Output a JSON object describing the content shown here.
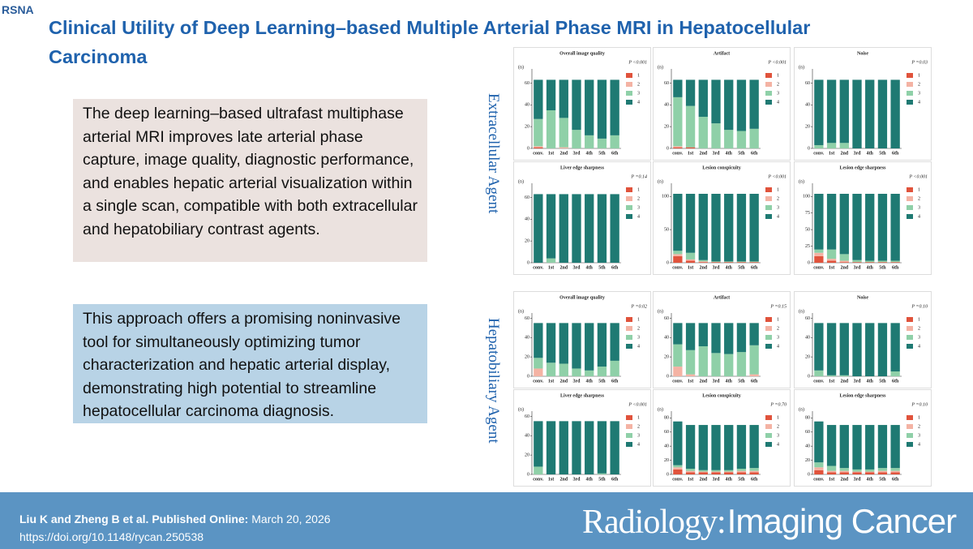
{
  "header": {
    "logo": "RSNA",
    "title": "Clinical Utility of Deep Learning–based Multiple Arterial Phase MRI in Hepatocellular Carcinoma"
  },
  "summary": [
    "The deep learning–based ultrafast multiphase arterial MRI improves late arterial phase capture, image quality, diagnostic performance, and enables hepatic arterial visualization within a single scan, compatible with  both extracellular and hepatobiliary contrast agents.",
    "This approach offers a promising noninvasive tool for simultaneously optimizing tumor characterization and hepatic arterial display, demonstrating high potential to streamline hepatocellular carcinoma diagnosis."
  ],
  "groups": [
    "Extracellular Agent",
    "Hepatobiliary Agent"
  ],
  "chart_data": [
    {
      "type": "bar",
      "stacked": true,
      "title": "Overall image quality",
      "p_value": "P <0.001",
      "y_label": "(n)",
      "categories": [
        "conv.",
        "1st",
        "2nd",
        "3rd",
        "4th",
        "5th",
        "6th"
      ],
      "ylim": [
        0,
        70
      ],
      "yticks": [
        0,
        20,
        40,
        60
      ],
      "series": [
        {
          "name": "1",
          "color": "#e0533c",
          "values": [
            1,
            0,
            0,
            0,
            0,
            0,
            0
          ]
        },
        {
          "name": "2",
          "color": "#f4b3a4",
          "values": [
            1,
            0,
            1,
            0,
            0,
            0,
            0
          ]
        },
        {
          "name": "3",
          "color": "#8fd0a8",
          "values": [
            25,
            35,
            27,
            17,
            12,
            9,
            12
          ]
        },
        {
          "name": "4",
          "color": "#1f7a73",
          "values": [
            36,
            28,
            35,
            46,
            51,
            54,
            51
          ]
        }
      ]
    },
    {
      "type": "bar",
      "stacked": true,
      "title": "Artifact",
      "p_value": "P <0.001",
      "y_label": "(n)",
      "categories": [
        "conv.",
        "1st",
        "2nd",
        "3rd",
        "4th",
        "5th",
        "6th"
      ],
      "ylim": [
        0,
        70
      ],
      "yticks": [
        0,
        20,
        40,
        60
      ],
      "series": [
        {
          "name": "1",
          "color": "#e0533c",
          "values": [
            1,
            1,
            0,
            0,
            0,
            0,
            0
          ]
        },
        {
          "name": "2",
          "color": "#f4b3a4",
          "values": [
            1,
            0,
            0,
            0,
            0,
            0,
            0
          ]
        },
        {
          "name": "3",
          "color": "#8fd0a8",
          "values": [
            45,
            38,
            29,
            23,
            17,
            16,
            18
          ]
        },
        {
          "name": "4",
          "color": "#1f7a73",
          "values": [
            16,
            24,
            34,
            40,
            46,
            47,
            45
          ]
        }
      ]
    },
    {
      "type": "bar",
      "stacked": true,
      "title": "Noise",
      "p_value": "P =0.03",
      "y_label": "(n)",
      "categories": [
        "conv.",
        "1st",
        "2nd",
        "3rd",
        "4th",
        "5th",
        "6th"
      ],
      "ylim": [
        0,
        70
      ],
      "yticks": [
        0,
        20,
        40,
        60
      ],
      "series": [
        {
          "name": "1",
          "color": "#e0533c",
          "values": [
            0,
            0,
            0,
            0,
            0,
            0,
            0
          ]
        },
        {
          "name": "2",
          "color": "#f4b3a4",
          "values": [
            0,
            0,
            0,
            0,
            0,
            0,
            0
          ]
        },
        {
          "name": "3",
          "color": "#8fd0a8",
          "values": [
            3,
            5,
            5,
            0,
            0,
            0,
            0
          ]
        },
        {
          "name": "4",
          "color": "#1f7a73",
          "values": [
            60,
            58,
            58,
            63,
            63,
            63,
            63
          ]
        }
      ]
    },
    {
      "type": "bar",
      "stacked": true,
      "title": "Liver edge sharpness",
      "p_value": "P =0.14",
      "y_label": "(n)",
      "categories": [
        "conv.",
        "1st",
        "2nd",
        "3rd",
        "4th",
        "5th",
        "6th"
      ],
      "ylim": [
        0,
        70
      ],
      "yticks": [
        0,
        20,
        40,
        60
      ],
      "series": [
        {
          "name": "1",
          "color": "#e0533c",
          "values": [
            0,
            0,
            0,
            0,
            0,
            0,
            0
          ]
        },
        {
          "name": "2",
          "color": "#f4b3a4",
          "values": [
            0,
            0,
            0,
            0,
            0,
            0,
            0
          ]
        },
        {
          "name": "3",
          "color": "#8fd0a8",
          "values": [
            0,
            4,
            0,
            0,
            0,
            0,
            0
          ]
        },
        {
          "name": "4",
          "color": "#1f7a73",
          "values": [
            63,
            59,
            63,
            63,
            63,
            63,
            63
          ]
        }
      ]
    },
    {
      "type": "bar",
      "stacked": true,
      "title": "Lesion conspicuity",
      "p_value": "P <0.001",
      "y_label": "(n)",
      "categories": [
        "conv.",
        "1st",
        "2nd",
        "3rd",
        "4th",
        "5th",
        "6th"
      ],
      "ylim": [
        0,
        115
      ],
      "yticks": [
        0,
        50,
        100
      ],
      "series": [
        {
          "name": "1",
          "color": "#e0533c",
          "values": [
            10,
            3,
            1,
            1,
            1,
            1,
            1
          ]
        },
        {
          "name": "2",
          "color": "#f4b3a4",
          "values": [
            3,
            2,
            1,
            0,
            0,
            0,
            0
          ]
        },
        {
          "name": "3",
          "color": "#8fd0a8",
          "values": [
            5,
            10,
            2,
            1,
            1,
            1,
            1
          ]
        },
        {
          "name": "4",
          "color": "#1f7a73",
          "values": [
            86,
            89,
            100,
            102,
            102,
            102,
            102
          ]
        }
      ]
    },
    {
      "type": "bar",
      "stacked": true,
      "title": "Lesion edge sharpness",
      "p_value": "P <0.001",
      "y_label": "(n)",
      "categories": [
        "conv.",
        "1st",
        "2nd",
        "3rd",
        "4th",
        "5th",
        "6th"
      ],
      "ylim": [
        0,
        115
      ],
      "yticks": [
        0,
        25,
        50,
        75,
        100
      ],
      "series": [
        {
          "name": "1",
          "color": "#e0533c",
          "values": [
            10,
            3,
            1,
            1,
            1,
            1,
            1
          ]
        },
        {
          "name": "2",
          "color": "#f4b3a4",
          "values": [
            5,
            3,
            2,
            0,
            0,
            0,
            0
          ]
        },
        {
          "name": "3",
          "color": "#8fd0a8",
          "values": [
            5,
            14,
            10,
            3,
            2,
            2,
            2
          ]
        },
        {
          "name": "4",
          "color": "#1f7a73",
          "values": [
            84,
            84,
            91,
            100,
            101,
            101,
            101
          ]
        }
      ]
    },
    {
      "type": "bar",
      "stacked": true,
      "title": "Overall image quality",
      "p_value": "P =0.02",
      "y_label": "(n)",
      "categories": [
        "conv.",
        "1st",
        "2nd",
        "3rd",
        "4th",
        "5th",
        "6th"
      ],
      "ylim": [
        0,
        62
      ],
      "yticks": [
        0,
        20,
        40,
        60
      ],
      "series": [
        {
          "name": "1",
          "color": "#e0533c",
          "values": [
            0,
            0,
            0,
            0,
            0,
            0,
            0
          ]
        },
        {
          "name": "2",
          "color": "#f4b3a4",
          "values": [
            8,
            0,
            0,
            0,
            0,
            0,
            0
          ]
        },
        {
          "name": "3",
          "color": "#8fd0a8",
          "values": [
            11,
            14,
            13,
            8,
            6,
            10,
            16
          ]
        },
        {
          "name": "4",
          "color": "#1f7a73",
          "values": [
            36,
            41,
            42,
            47,
            49,
            45,
            39
          ]
        }
      ]
    },
    {
      "type": "bar",
      "stacked": true,
      "title": "Artifact",
      "p_value": "P =0.15",
      "y_label": "(n)",
      "categories": [
        "conv.",
        "1st",
        "2nd",
        "3rd",
        "4th",
        "5th",
        "6th"
      ],
      "ylim": [
        0,
        62
      ],
      "yticks": [
        0,
        20,
        40,
        60
      ],
      "series": [
        {
          "name": "1",
          "color": "#e0533c",
          "values": [
            0,
            0,
            0,
            0,
            0,
            0,
            0
          ]
        },
        {
          "name": "2",
          "color": "#f4b3a4",
          "values": [
            10,
            2,
            0,
            0,
            0,
            0,
            2
          ]
        },
        {
          "name": "3",
          "color": "#8fd0a8",
          "values": [
            23,
            25,
            31,
            24,
            23,
            25,
            30
          ]
        },
        {
          "name": "4",
          "color": "#1f7a73",
          "values": [
            22,
            28,
            24,
            31,
            32,
            30,
            23
          ]
        }
      ]
    },
    {
      "type": "bar",
      "stacked": true,
      "title": "Noise",
      "p_value": "P =0.10",
      "y_label": "(n)",
      "categories": [
        "conv.",
        "1st",
        "2nd",
        "3rd",
        "4th",
        "5th",
        "6th"
      ],
      "ylim": [
        0,
        62
      ],
      "yticks": [
        0,
        20,
        40,
        60
      ],
      "series": [
        {
          "name": "1",
          "color": "#e0533c",
          "values": [
            0,
            0,
            0,
            0,
            0,
            0,
            0
          ]
        },
        {
          "name": "2",
          "color": "#f4b3a4",
          "values": [
            0,
            0,
            0,
            0,
            0,
            0,
            0
          ]
        },
        {
          "name": "3",
          "color": "#8fd0a8",
          "values": [
            6,
            1,
            1,
            0,
            0,
            0,
            5
          ]
        },
        {
          "name": "4",
          "color": "#1f7a73",
          "values": [
            49,
            54,
            54,
            55,
            55,
            55,
            50
          ]
        }
      ]
    },
    {
      "type": "bar",
      "stacked": true,
      "title": "Liver edge sharpness",
      "p_value": "P <0.001",
      "y_label": "(n)",
      "categories": [
        "conv.",
        "1st",
        "2nd",
        "3rd",
        "4th",
        "5th",
        "6th"
      ],
      "ylim": [
        0,
        62
      ],
      "yticks": [
        0,
        20,
        40,
        60
      ],
      "series": [
        {
          "name": "1",
          "color": "#e0533c",
          "values": [
            0,
            0,
            0,
            0,
            0,
            0,
            0
          ]
        },
        {
          "name": "2",
          "color": "#f4b3a4",
          "values": [
            0,
            0,
            0,
            0,
            0,
            0,
            0
          ]
        },
        {
          "name": "3",
          "color": "#8fd0a8",
          "values": [
            8,
            0,
            0,
            0,
            0,
            1,
            0
          ]
        },
        {
          "name": "4",
          "color": "#1f7a73",
          "values": [
            47,
            55,
            55,
            55,
            55,
            54,
            55
          ]
        }
      ]
    },
    {
      "type": "bar",
      "stacked": true,
      "title": "Lesion conspicuity",
      "p_value": "P =0.70",
      "y_label": "(n)",
      "categories": [
        "conv.",
        "1st",
        "2nd",
        "3rd",
        "4th",
        "5th",
        "6th"
      ],
      "ylim": [
        0,
        85
      ],
      "yticks": [
        0,
        20,
        40,
        60,
        80
      ],
      "series": [
        {
          "name": "1",
          "color": "#e0533c",
          "values": [
            7,
            3,
            3,
            3,
            3,
            3,
            3
          ]
        },
        {
          "name": "2",
          "color": "#f4b3a4",
          "values": [
            3,
            2,
            1,
            1,
            1,
            2,
            2
          ]
        },
        {
          "name": "3",
          "color": "#8fd0a8",
          "values": [
            3,
            3,
            2,
            2,
            2,
            3,
            4
          ]
        },
        {
          "name": "4",
          "color": "#1f7a73",
          "values": [
            62,
            62,
            64,
            64,
            64,
            62,
            61
          ]
        }
      ]
    },
    {
      "type": "bar",
      "stacked": true,
      "title": "Lesion edge sharpness",
      "p_value": "P =0.10",
      "y_label": "(n)",
      "categories": [
        "conv.",
        "1st",
        "2nd",
        "3rd",
        "4th",
        "5th",
        "6th"
      ],
      "ylim": [
        0,
        85
      ],
      "yticks": [
        0,
        20,
        40,
        60,
        80
      ],
      "series": [
        {
          "name": "1",
          "color": "#e0533c",
          "values": [
            6,
            3,
            3,
            3,
            3,
            3,
            3
          ]
        },
        {
          "name": "2",
          "color": "#f4b3a4",
          "values": [
            4,
            2,
            2,
            1,
            1,
            2,
            2
          ]
        },
        {
          "name": "3",
          "color": "#8fd0a8",
          "values": [
            7,
            7,
            4,
            3,
            3,
            4,
            4
          ]
        },
        {
          "name": "4",
          "color": "#1f7a73",
          "values": [
            58,
            58,
            61,
            63,
            63,
            61,
            61
          ]
        }
      ]
    }
  ],
  "footer": {
    "citation": "Liu K and Zheng B et al. Published Online:",
    "date": "March 20, 2026",
    "doi": "https://doi.org/10.1148/rycan.250538",
    "journal": "Radiology:",
    "journal_sub": "Imaging Cancer"
  }
}
